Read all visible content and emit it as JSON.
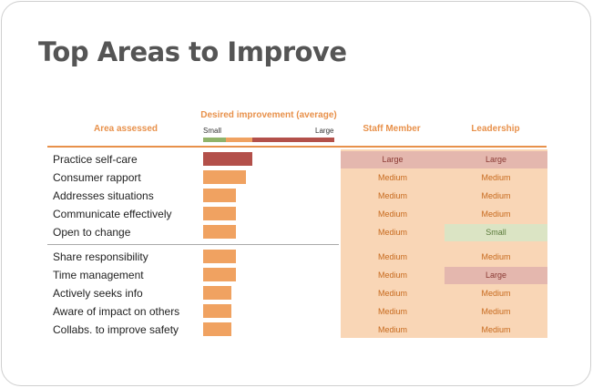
{
  "page": {
    "title": "Top Areas to Improve"
  },
  "headers": {
    "area": "Area assessed",
    "desired": "Desired improvement (average)",
    "scale_small": "Small",
    "scale_large": "Large",
    "staff": "Staff Member",
    "leadership": "Leadership"
  },
  "colors": {
    "accent": "#e8914b",
    "bar_large": "#b3504a",
    "bar_medium": "#f0a261",
    "scale_small": "#8fb36a",
    "cell_bg": "#f9d6b6",
    "cell_large_bg": "#e4b7ae",
    "cell_small_bg": "#dbe4c4",
    "text_orange": "#c76a1e",
    "text_large": "#8a3a34",
    "text_small": "#5a7a3a"
  },
  "chart_data": {
    "type": "table",
    "columns": [
      "Area assessed",
      "Desired improvement (average)",
      "Staff Member",
      "Leadership"
    ],
    "rows": [
      {
        "label": "Practice self-care",
        "value": 3.0,
        "staff": "Large",
        "leadership": "Large"
      },
      {
        "label": "Consumer rapport",
        "value": 2.6,
        "staff": "Medium",
        "leadership": "Medium"
      },
      {
        "label": "Addresses situations",
        "value": 2.0,
        "staff": "Medium",
        "leadership": "Medium"
      },
      {
        "label": "Communicate effectively",
        "value": 2.0,
        "staff": "Medium",
        "leadership": "Medium"
      },
      {
        "label": "Open to change",
        "value": 2.0,
        "staff": "Medium",
        "leadership": "Small"
      },
      {
        "label": "Share responsibility",
        "value": 2.0,
        "staff": "Medium",
        "leadership": "Medium"
      },
      {
        "label": "Time management",
        "value": 2.0,
        "staff": "Medium",
        "leadership": "Large"
      },
      {
        "label": "Actively seeks info",
        "value": 1.7,
        "staff": "Medium",
        "leadership": "Medium"
      },
      {
        "label": "Aware of impact on others",
        "value": 1.7,
        "staff": "Medium",
        "leadership": "Medium"
      },
      {
        "label": "Collabs. to improve safety",
        "value": 1.7,
        "staff": "Medium",
        "leadership": "Medium"
      }
    ],
    "scale": {
      "min": 0,
      "max": 8,
      "bands": [
        {
          "name": "Small",
          "from": 0,
          "to": 1.4
        },
        {
          "name": "Medium",
          "from": 1.4,
          "to": 3.0
        },
        {
          "name": "Large",
          "from": 3.0,
          "to": 8
        }
      ]
    }
  }
}
